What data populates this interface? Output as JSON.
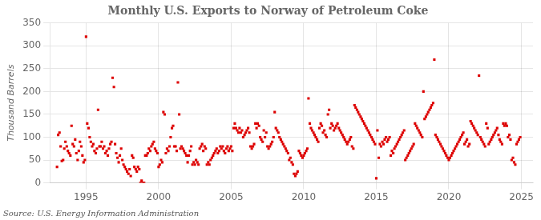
{
  "chart_data": {
    "type": "scatter",
    "title": "Monthly U.S. Exports to Norway of Petroleum Coke",
    "ylabel": "Thousand Barrels",
    "annotation": "Source: U.S. Energy Information Administration",
    "color": "#dd0000",
    "marker": "square",
    "grid": true,
    "xlim": [
      1992.5,
      2025.8
    ],
    "ylim": [
      0,
      350
    ],
    "xticks": [
      1995,
      2000,
      2005,
      2010,
      2015,
      2020,
      2025
    ],
    "yticks": [
      0,
      50,
      100,
      150,
      200,
      250,
      300,
      350
    ],
    "x": [
      1993.0,
      1993.08,
      1993.17,
      1993.25,
      1993.33,
      1993.42,
      1993.5,
      1993.58,
      1993.67,
      1993.75,
      1993.83,
      1993.92,
      1994.0,
      1994.08,
      1994.17,
      1994.25,
      1994.33,
      1994.42,
      1994.5,
      1994.58,
      1994.67,
      1994.75,
      1994.83,
      1994.92,
      1995.0,
      1995.08,
      1995.17,
      1995.25,
      1995.33,
      1995.42,
      1995.5,
      1995.58,
      1995.67,
      1995.75,
      1995.83,
      1995.92,
      1996.0,
      1996.08,
      1996.17,
      1996.25,
      1996.33,
      1996.42,
      1996.5,
      1996.58,
      1996.67,
      1996.75,
      1996.83,
      1996.92,
      1997.0,
      1997.08,
      1997.17,
      1997.25,
      1997.33,
      1997.42,
      1997.5,
      1997.58,
      1997.67,
      1997.75,
      1997.83,
      1997.92,
      1998.0,
      1998.08,
      1998.17,
      1998.25,
      1998.33,
      1998.42,
      1998.5,
      1998.58,
      1998.67,
      1998.75,
      1998.83,
      1998.92,
      1999.0,
      1999.08,
      1999.17,
      1999.25,
      1999.33,
      1999.42,
      1999.5,
      1999.58,
      1999.67,
      1999.75,
      1999.83,
      1999.92,
      2000.0,
      2000.08,
      2000.17,
      2000.25,
      2000.33,
      2000.42,
      2000.5,
      2000.58,
      2000.67,
      2000.75,
      2000.83,
      2000.92,
      2001.0,
      2001.08,
      2001.17,
      2001.25,
      2001.33,
      2001.42,
      2001.5,
      2001.58,
      2001.67,
      2001.75,
      2001.83,
      2001.92,
      2002.0,
      2002.08,
      2002.17,
      2002.25,
      2002.33,
      2002.42,
      2002.5,
      2002.58,
      2002.67,
      2002.75,
      2002.83,
      2002.92,
      2003.0,
      2003.08,
      2003.17,
      2003.25,
      2003.33,
      2003.42,
      2003.5,
      2003.58,
      2003.67,
      2003.75,
      2003.83,
      2003.92,
      2004.0,
      2004.08,
      2004.17,
      2004.25,
      2004.33,
      2004.42,
      2004.5,
      2004.58,
      2004.67,
      2004.75,
      2004.83,
      2004.92,
      2005.0,
      2005.08,
      2005.17,
      2005.25,
      2005.33,
      2005.42,
      2005.5,
      2005.58,
      2005.67,
      2005.75,
      2005.83,
      2005.92,
      2006.0,
      2006.08,
      2006.17,
      2006.25,
      2006.33,
      2006.42,
      2006.5,
      2006.58,
      2006.67,
      2006.75,
      2006.83,
      2006.92,
      2007.0,
      2007.08,
      2007.17,
      2007.25,
      2007.33,
      2007.42,
      2007.5,
      2007.58,
      2007.67,
      2007.75,
      2007.83,
      2007.92,
      2008.0,
      2008.08,
      2008.17,
      2008.25,
      2008.33,
      2008.42,
      2008.5,
      2008.58,
      2008.67,
      2008.75,
      2008.83,
      2008.92,
      2009.0,
      2009.08,
      2009.17,
      2009.25,
      2009.33,
      2009.42,
      2009.5,
      2009.58,
      2009.67,
      2009.75,
      2009.83,
      2009.92,
      2010.0,
      2010.08,
      2010.17,
      2010.25,
      2010.33,
      2010.42,
      2010.5,
      2010.58,
      2010.67,
      2010.75,
      2010.83,
      2010.92,
      2011.0,
      2011.08,
      2011.17,
      2011.25,
      2011.33,
      2011.42,
      2011.5,
      2011.58,
      2011.67,
      2011.75,
      2011.83,
      2011.92,
      2012.0,
      2012.08,
      2012.17,
      2012.25,
      2012.33,
      2012.42,
      2012.5,
      2012.58,
      2012.67,
      2012.75,
      2012.83,
      2012.92,
      2013.0,
      2013.08,
      2013.17,
      2013.25,
      2013.33,
      2013.42,
      2013.5,
      2013.58,
      2013.67,
      2013.75,
      2013.83,
      2013.92,
      2014.0,
      2014.08,
      2014.17,
      2014.25,
      2014.33,
      2014.42,
      2014.5,
      2014.58,
      2014.67,
      2014.75,
      2014.83,
      2014.92,
      2015.0,
      2015.08,
      2015.17,
      2015.25,
      2015.33,
      2015.42,
      2015.5,
      2015.58,
      2015.67,
      2015.75,
      2015.83,
      2015.92,
      2016.0,
      2016.08,
      2016.17,
      2016.25,
      2016.33,
      2016.42,
      2016.5,
      2016.58,
      2016.67,
      2016.75,
      2016.83,
      2016.92,
      2017.0,
      2017.08,
      2017.17,
      2017.25,
      2017.33,
      2017.42,
      2017.5,
      2017.58,
      2017.67,
      2017.75,
      2017.83,
      2017.92,
      2018.0,
      2018.08,
      2018.17,
      2018.25,
      2018.33,
      2018.42,
      2018.5,
      2018.58,
      2018.67,
      2018.75,
      2018.83,
      2018.92,
      2019.0,
      2019.08,
      2019.17,
      2019.25,
      2019.33,
      2019.42,
      2019.5,
      2019.58,
      2019.67,
      2019.75,
      2019.83,
      2019.92,
      2020.0,
      2020.08,
      2020.17,
      2020.25,
      2020.33,
      2020.42,
      2020.5,
      2020.58,
      2020.67,
      2020.75,
      2020.83,
      2020.92,
      2021.0,
      2021.08,
      2021.17,
      2021.25,
      2021.33,
      2021.42,
      2021.5,
      2021.58,
      2021.67,
      2021.75,
      2021.83,
      2021.92,
      2022.0,
      2022.08,
      2022.17,
      2022.25,
      2022.33,
      2022.42,
      2022.5,
      2022.58,
      2022.67,
      2022.75,
      2022.83,
      2022.92,
      2023.0,
      2023.08,
      2023.17,
      2023.25,
      2023.33,
      2023.42,
      2023.5,
      2023.58,
      2023.67,
      2023.75,
      2023.83,
      2023.92,
      2024.0,
      2024.08,
      2024.17,
      2024.25,
      2024.33,
      2024.42,
      2024.5,
      2024.58,
      2024.67,
      2024.75,
      2024.83,
      2024.92
    ],
    "values": [
      35,
      105,
      110,
      80,
      48,
      50,
      75,
      90,
      80,
      70,
      65,
      60,
      125,
      85,
      80,
      95,
      65,
      50,
      70,
      90,
      80,
      60,
      45,
      50,
      320,
      130,
      120,
      100,
      90,
      80,
      85,
      70,
      65,
      75,
      160,
      80,
      80,
      90,
      75,
      80,
      65,
      70,
      60,
      75,
      85,
      90,
      230,
      210,
      85,
      65,
      55,
      45,
      60,
      75,
      50,
      40,
      35,
      30,
      25,
      20,
      30,
      15,
      60,
      55,
      35,
      30,
      25,
      35,
      30,
      0,
      5,
      0,
      0,
      60,
      60,
      65,
      75,
      70,
      80,
      85,
      90,
      75,
      70,
      65,
      35,
      40,
      50,
      45,
      155,
      150,
      65,
      75,
      70,
      80,
      100,
      120,
      125,
      80,
      80,
      70,
      220,
      150,
      75,
      80,
      75,
      70,
      65,
      60,
      45,
      60,
      70,
      80,
      40,
      45,
      40,
      50,
      45,
      40,
      75,
      80,
      85,
      70,
      80,
      75,
      40,
      45,
      40,
      50,
      55,
      60,
      65,
      70,
      75,
      65,
      70,
      80,
      75,
      80,
      70,
      65,
      75,
      80,
      70,
      75,
      80,
      70,
      120,
      130,
      120,
      115,
      110,
      120,
      110,
      115,
      100,
      105,
      110,
      115,
      120,
      110,
      80,
      75,
      80,
      85,
      130,
      120,
      130,
      125,
      100,
      95,
      90,
      115,
      100,
      110,
      80,
      75,
      80,
      85,
      90,
      100,
      155,
      120,
      115,
      110,
      100,
      95,
      90,
      85,
      80,
      75,
      70,
      65,
      50,
      55,
      45,
      40,
      20,
      15,
      20,
      25,
      70,
      65,
      60,
      55,
      60,
      65,
      70,
      75,
      185,
      130,
      120,
      115,
      110,
      105,
      100,
      95,
      90,
      120,
      130,
      125,
      110,
      115,
      105,
      100,
      150,
      160,
      120,
      130,
      125,
      115,
      120,
      125,
      130,
      120,
      115,
      110,
      105,
      100,
      95,
      90,
      85,
      90,
      95,
      100,
      80,
      75,
      170,
      165,
      160,
      155,
      150,
      145,
      140,
      135,
      130,
      125,
      120,
      115,
      110,
      105,
      100,
      95,
      90,
      85,
      10,
      115,
      55,
      85,
      80,
      90,
      85,
      95,
      100,
      90,
      95,
      100,
      60,
      70,
      65,
      75,
      80,
      85,
      90,
      95,
      100,
      105,
      110,
      115,
      50,
      55,
      60,
      65,
      70,
      75,
      80,
      85,
      130,
      125,
      120,
      115,
      110,
      105,
      100,
      200,
      140,
      145,
      150,
      155,
      160,
      165,
      170,
      175,
      270,
      105,
      100,
      95,
      90,
      85,
      80,
      75,
      70,
      65,
      60,
      55,
      50,
      55,
      60,
      65,
      70,
      75,
      80,
      85,
      90,
      95,
      100,
      105,
      110,
      85,
      90,
      95,
      80,
      85,
      135,
      130,
      125,
      120,
      115,
      110,
      105,
      235,
      100,
      95,
      90,
      85,
      80,
      130,
      120,
      85,
      90,
      95,
      100,
      105,
      110,
      115,
      120,
      105,
      95,
      90,
      85,
      130,
      125,
      130,
      125,
      100,
      105,
      95,
      50,
      55,
      45,
      40,
      85,
      90,
      95,
      100
    ]
  }
}
